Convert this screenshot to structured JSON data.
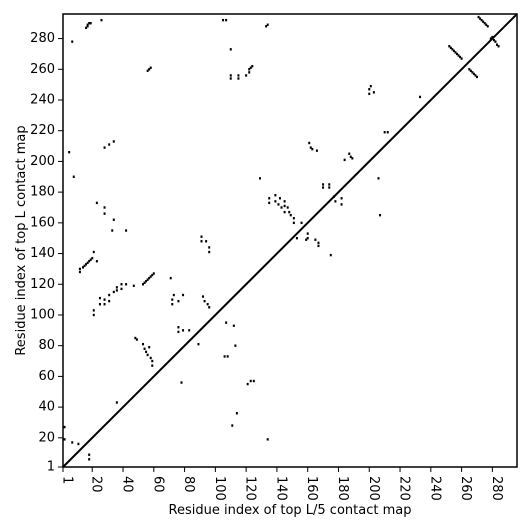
{
  "chart_data": {
    "type": "scatter",
    "title": "",
    "xlabel": "Residue index of top L/5 contact map",
    "ylabel": "Residue index of top L contact map",
    "xlim": [
      1,
      296
    ],
    "ylim": [
      1,
      296
    ],
    "xticks": [
      1,
      20,
      40,
      60,
      80,
      100,
      120,
      140,
      160,
      180,
      200,
      220,
      240,
      260,
      280
    ],
    "yticks": [
      1,
      20,
      40,
      60,
      80,
      100,
      120,
      140,
      160,
      180,
      200,
      220,
      240,
      260,
      280
    ],
    "grid": false,
    "diagonal": true,
    "point_color": "#000000",
    "points": [
      [
        2,
        27
      ],
      [
        2,
        19
      ],
      [
        5,
        206
      ],
      [
        7,
        278
      ],
      [
        8,
        190
      ],
      [
        7,
        17
      ],
      [
        11,
        16
      ],
      [
        12,
        128
      ],
      [
        12,
        130
      ],
      [
        14,
        131
      ],
      [
        15,
        132
      ],
      [
        16,
        133
      ],
      [
        17,
        134
      ],
      [
        18,
        135
      ],
      [
        19,
        136
      ],
      [
        20,
        137
      ],
      [
        21,
        141
      ],
      [
        18,
        6
      ],
      [
        18,
        9
      ],
      [
        16,
        287
      ],
      [
        17,
        288
      ],
      [
        17,
        289
      ],
      [
        18,
        290
      ],
      [
        19,
        290
      ],
      [
        26,
        292
      ],
      [
        21,
        100
      ],
      [
        21,
        103
      ],
      [
        23,
        173
      ],
      [
        23,
        135
      ],
      [
        25,
        107
      ],
      [
        25,
        111
      ],
      [
        28,
        107
      ],
      [
        28,
        110
      ],
      [
        28,
        170
      ],
      [
        28,
        166
      ],
      [
        28,
        209
      ],
      [
        31,
        211
      ],
      [
        31,
        109
      ],
      [
        31,
        113
      ],
      [
        33,
        155
      ],
      [
        34,
        162
      ],
      [
        34,
        213
      ],
      [
        34,
        115
      ],
      [
        36,
        118
      ],
      [
        36,
        116
      ],
      [
        36,
        43
      ],
      [
        39,
        117
      ],
      [
        39,
        120
      ],
      [
        42,
        155
      ],
      [
        42,
        120
      ],
      [
        47,
        119
      ],
      [
        48,
        85
      ],
      [
        49,
        84
      ],
      [
        53,
        120
      ],
      [
        54,
        121
      ],
      [
        55,
        122
      ],
      [
        56,
        123
      ],
      [
        57,
        124
      ],
      [
        58,
        125
      ],
      [
        59,
        126
      ],
      [
        60,
        127
      ],
      [
        53,
        81
      ],
      [
        54,
        78
      ],
      [
        55,
        76
      ],
      [
        56,
        74
      ],
      [
        57,
        79
      ],
      [
        58,
        72
      ],
      [
        59,
        70
      ],
      [
        59,
        67
      ],
      [
        56,
        259
      ],
      [
        57,
        260
      ],
      [
        58,
        261
      ],
      [
        71,
        124
      ],
      [
        72,
        110
      ],
      [
        72,
        107
      ],
      [
        73,
        113
      ],
      [
        76,
        109
      ],
      [
        76,
        92
      ],
      [
        76,
        89
      ],
      [
        79,
        113
      ],
      [
        79,
        90
      ],
      [
        78,
        56
      ],
      [
        83,
        90
      ],
      [
        89,
        81
      ],
      [
        91,
        148
      ],
      [
        91,
        151
      ],
      [
        92,
        112
      ],
      [
        93,
        109
      ],
      [
        94,
        148
      ],
      [
        95,
        107
      ],
      [
        96,
        105
      ],
      [
        96,
        141
      ],
      [
        96,
        144
      ],
      [
        105,
        292
      ],
      [
        107,
        292
      ],
      [
        106,
        73
      ],
      [
        108,
        73
      ],
      [
        107,
        95
      ],
      [
        110,
        273
      ],
      [
        110,
        256
      ],
      [
        110,
        254
      ],
      [
        111,
        28
      ],
      [
        112,
        93
      ],
      [
        113,
        80
      ],
      [
        114,
        36
      ],
      [
        115,
        256
      ],
      [
        115,
        254
      ],
      [
        120,
        256
      ],
      [
        121,
        55
      ],
      [
        122,
        258
      ],
      [
        122,
        260
      ],
      [
        123,
        261
      ],
      [
        124,
        262
      ],
      [
        123,
        57
      ],
      [
        125,
        57
      ],
      [
        129,
        189
      ],
      [
        133,
        288
      ],
      [
        134,
        289
      ],
      [
        134,
        19
      ],
      [
        135,
        173
      ],
      [
        135,
        176
      ],
      [
        139,
        178
      ],
      [
        139,
        174
      ],
      [
        141,
        172
      ],
      [
        142,
        176
      ],
      [
        143,
        170
      ],
      [
        145,
        174
      ],
      [
        145,
        171
      ],
      [
        145,
        167
      ],
      [
        147,
        170
      ],
      [
        148,
        167
      ],
      [
        149,
        165
      ],
      [
        151,
        163
      ],
      [
        151,
        160
      ],
      [
        153,
        150
      ],
      [
        156,
        160
      ],
      [
        159,
        149
      ],
      [
        160,
        153
      ],
      [
        160,
        150
      ],
      [
        161,
        212
      ],
      [
        162,
        209
      ],
      [
        163,
        208
      ],
      [
        165,
        149
      ],
      [
        166,
        207
      ],
      [
        167,
        147
      ],
      [
        167,
        145
      ],
      [
        170,
        185
      ],
      [
        170,
        183
      ],
      [
        174,
        185
      ],
      [
        174,
        183
      ],
      [
        175,
        139
      ],
      [
        177,
        177
      ],
      [
        178,
        174
      ],
      [
        182,
        172
      ],
      [
        182,
        176
      ],
      [
        184,
        201
      ],
      [
        187,
        205
      ],
      [
        188,
        203
      ],
      [
        189,
        202
      ],
      [
        200,
        247
      ],
      [
        200,
        244
      ],
      [
        201,
        249
      ],
      [
        203,
        245
      ],
      [
        206,
        189
      ],
      [
        207,
        165
      ],
      [
        210,
        219
      ],
      [
        212,
        219
      ],
      [
        233,
        242
      ],
      [
        252,
        275
      ],
      [
        253,
        274
      ],
      [
        254,
        273
      ],
      [
        255,
        272
      ],
      [
        256,
        271
      ],
      [
        257,
        270
      ],
      [
        258,
        269
      ],
      [
        259,
        268
      ],
      [
        260,
        267
      ],
      [
        265,
        260
      ],
      [
        266,
        259
      ],
      [
        267,
        258
      ],
      [
        268,
        257
      ],
      [
        269,
        256
      ],
      [
        270,
        255
      ],
      [
        271,
        294
      ],
      [
        272,
        293
      ],
      [
        273,
        292
      ],
      [
        274,
        291
      ],
      [
        275,
        290
      ],
      [
        276,
        289
      ],
      [
        277,
        288
      ],
      [
        279,
        280
      ],
      [
        280,
        281
      ],
      [
        281,
        279
      ],
      [
        282,
        278
      ],
      [
        283,
        276
      ],
      [
        284,
        275
      ]
    ]
  }
}
